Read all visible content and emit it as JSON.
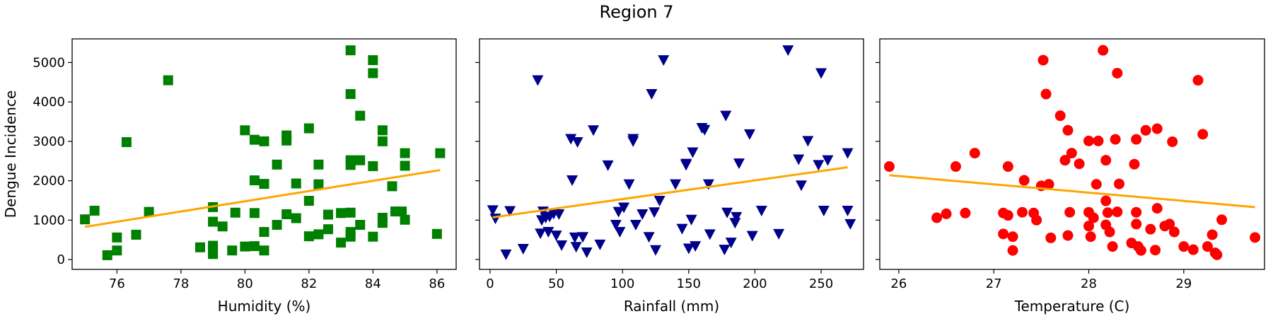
{
  "title": "Region 7",
  "chart_data": [
    {
      "type": "scatter",
      "xlabel": "Humidity (%)",
      "ylabel": "Dengue Incidence",
      "xlim": [
        74.6,
        86.6
      ],
      "ylim": [
        -250,
        5600
      ],
      "xticks": [
        76,
        78,
        80,
        82,
        84,
        86
      ],
      "yticks": [
        0,
        1000,
        2000,
        3000,
        4000,
        5000
      ],
      "marker": "square",
      "color": "#008000",
      "trend_color": "#FFA500",
      "trend": {
        "x": [
          75.0,
          86.1
        ],
        "y": [
          830,
          2270
        ]
      },
      "points": [
        [
          75.0,
          1020
        ],
        [
          75.3,
          1240
        ],
        [
          75.7,
          110
        ],
        [
          76.0,
          560
        ],
        [
          76.0,
          230
        ],
        [
          76.3,
          2980
        ],
        [
          76.6,
          630
        ],
        [
          77.0,
          1210
        ],
        [
          77.6,
          4550
        ],
        [
          78.6,
          310
        ],
        [
          79.0,
          1330
        ],
        [
          79.0,
          960
        ],
        [
          79.0,
          350
        ],
        [
          79.0,
          240
        ],
        [
          79.0,
          140
        ],
        [
          79.3,
          840
        ],
        [
          79.6,
          230
        ],
        [
          79.7,
          1190
        ],
        [
          80.0,
          3280
        ],
        [
          80.0,
          330
        ],
        [
          80.3,
          3040
        ],
        [
          80.3,
          2010
        ],
        [
          80.3,
          1180
        ],
        [
          80.3,
          340
        ],
        [
          80.6,
          3000
        ],
        [
          80.6,
          1920
        ],
        [
          80.6,
          700
        ],
        [
          80.6,
          230
        ],
        [
          81.0,
          2410
        ],
        [
          81.0,
          880
        ],
        [
          81.3,
          3150
        ],
        [
          81.3,
          3020
        ],
        [
          81.3,
          1150
        ],
        [
          81.6,
          1930
        ],
        [
          81.6,
          1050
        ],
        [
          82.0,
          3330
        ],
        [
          82.0,
          1490
        ],
        [
          82.0,
          590
        ],
        [
          82.3,
          2410
        ],
        [
          82.3,
          1910
        ],
        [
          82.3,
          640
        ],
        [
          82.6,
          1140
        ],
        [
          82.6,
          770
        ],
        [
          83.0,
          1180
        ],
        [
          83.0,
          430
        ],
        [
          83.3,
          5310
        ],
        [
          83.3,
          4200
        ],
        [
          83.3,
          2520
        ],
        [
          83.3,
          2400
        ],
        [
          83.3,
          1190
        ],
        [
          83.3,
          700
        ],
        [
          83.3,
          580
        ],
        [
          83.6,
          3650
        ],
        [
          83.6,
          2520
        ],
        [
          83.6,
          880
        ],
        [
          84.0,
          5060
        ],
        [
          84.0,
          4730
        ],
        [
          84.0,
          2370
        ],
        [
          84.0,
          580
        ],
        [
          84.3,
          3280
        ],
        [
          84.3,
          3000
        ],
        [
          84.3,
          1060
        ],
        [
          84.3,
          930
        ],
        [
          84.6,
          1860
        ],
        [
          84.7,
          1220
        ],
        [
          84.9,
          1220
        ],
        [
          85.0,
          2700
        ],
        [
          85.0,
          2380
        ],
        [
          85.0,
          1010
        ],
        [
          86.0,
          650
        ],
        [
          86.1,
          2700
        ]
      ]
    },
    {
      "type": "scatter",
      "xlabel": "Rainfall (mm)",
      "ylabel": "",
      "xlim": [
        -8,
        282
      ],
      "ylim": [
        -250,
        5600
      ],
      "xticks": [
        0,
        50,
        100,
        150,
        200,
        250
      ],
      "yticks": [
        0,
        1000,
        2000,
        3000,
        4000,
        5000
      ],
      "marker": "triangle-down",
      "color": "#00008B",
      "trend_color": "#FFA500",
      "trend": {
        "x": [
          2,
          270
        ],
        "y": [
          1070,
          2340
        ]
      },
      "points": [
        [
          2,
          1250
        ],
        [
          4,
          1040
        ],
        [
          12,
          130
        ],
        [
          15,
          1230
        ],
        [
          25,
          270
        ],
        [
          36,
          4550
        ],
        [
          38,
          660
        ],
        [
          39,
          1000
        ],
        [
          40,
          1220
        ],
        [
          42,
          1060
        ],
        [
          44,
          700
        ],
        [
          45,
          1090
        ],
        [
          48,
          1160
        ],
        [
          50,
          610
        ],
        [
          52,
          1150
        ],
        [
          54,
          360
        ],
        [
          61,
          3060
        ],
        [
          62,
          2010
        ],
        [
          64,
          560
        ],
        [
          65,
          320
        ],
        [
          66,
          2980
        ],
        [
          70,
          570
        ],
        [
          73,
          180
        ],
        [
          78,
          3280
        ],
        [
          83,
          380
        ],
        [
          89,
          2390
        ],
        [
          95,
          880
        ],
        [
          97,
          1210
        ],
        [
          98,
          700
        ],
        [
          101,
          1320
        ],
        [
          105,
          1910
        ],
        [
          108,
          3060
        ],
        [
          108,
          3000
        ],
        [
          110,
          880
        ],
        [
          115,
          1150
        ],
        [
          120,
          570
        ],
        [
          122,
          4200
        ],
        [
          124,
          1200
        ],
        [
          125,
          240
        ],
        [
          128,
          1490
        ],
        [
          131,
          5060
        ],
        [
          140,
          1910
        ],
        [
          145,
          780
        ],
        [
          148,
          2400
        ],
        [
          148,
          2430
        ],
        [
          150,
          280
        ],
        [
          152,
          1010
        ],
        [
          153,
          2720
        ],
        [
          155,
          340
        ],
        [
          160,
          3340
        ],
        [
          162,
          3290
        ],
        [
          165,
          1910
        ],
        [
          166,
          640
        ],
        [
          177,
          250
        ],
        [
          178,
          3650
        ],
        [
          179,
          1190
        ],
        [
          182,
          430
        ],
        [
          185,
          930
        ],
        [
          186,
          1080
        ],
        [
          188,
          2440
        ],
        [
          196,
          3180
        ],
        [
          198,
          600
        ],
        [
          205,
          1240
        ],
        [
          218,
          650
        ],
        [
          225,
          5310
        ],
        [
          233,
          2540
        ],
        [
          235,
          1880
        ],
        [
          240,
          3010
        ],
        [
          248,
          2400
        ],
        [
          250,
          4730
        ],
        [
          252,
          1240
        ],
        [
          255,
          2520
        ],
        [
          270,
          2700
        ],
        [
          270,
          1240
        ],
        [
          272,
          900
        ]
      ]
    },
    {
      "type": "scatter",
      "xlabel": "Temperature (C)",
      "ylabel": "",
      "xlim": [
        25.8,
        29.85
      ],
      "ylim": [
        -250,
        5600
      ],
      "xticks": [
        26,
        27,
        28,
        29
      ],
      "yticks": [
        0,
        1000,
        2000,
        3000,
        4000,
        5000
      ],
      "marker": "circle",
      "color": "#FF0000",
      "trend_color": "#FFA500",
      "trend": {
        "x": [
          25.9,
          29.75
        ],
        "y": [
          2140,
          1330
        ]
      },
      "points": [
        [
          25.9,
          2360
        ],
        [
          26.4,
          1060
        ],
        [
          26.5,
          1160
        ],
        [
          26.6,
          2360
        ],
        [
          26.7,
          1180
        ],
        [
          26.8,
          2700
        ],
        [
          27.1,
          650
        ],
        [
          27.1,
          1180
        ],
        [
          27.15,
          2360
        ],
        [
          27.15,
          1120
        ],
        [
          27.2,
          230
        ],
        [
          27.2,
          580
        ],
        [
          27.3,
          1200
        ],
        [
          27.32,
          2010
        ],
        [
          27.42,
          1180
        ],
        [
          27.45,
          1000
        ],
        [
          27.5,
          1870
        ],
        [
          27.52,
          5060
        ],
        [
          27.55,
          4200
        ],
        [
          27.58,
          1910
        ],
        [
          27.6,
          550
        ],
        [
          27.7,
          3650
        ],
        [
          27.75,
          2520
        ],
        [
          27.78,
          3280
        ],
        [
          27.78,
          610
        ],
        [
          27.8,
          1200
        ],
        [
          27.82,
          2700
        ],
        [
          27.9,
          2430
        ],
        [
          28.0,
          3010
        ],
        [
          28.0,
          850
        ],
        [
          28.0,
          1200
        ],
        [
          28.02,
          580
        ],
        [
          28.05,
          1060
        ],
        [
          28.08,
          1910
        ],
        [
          28.1,
          3010
        ],
        [
          28.15,
          5310
        ],
        [
          28.18,
          1490
        ],
        [
          28.18,
          2520
        ],
        [
          28.18,
          880
        ],
        [
          28.2,
          1190
        ],
        [
          28.22,
          700
        ],
        [
          28.25,
          330
        ],
        [
          28.28,
          3050
        ],
        [
          28.3,
          1210
        ],
        [
          28.3,
          4730
        ],
        [
          28.32,
          1920
        ],
        [
          28.45,
          420
        ],
        [
          28.48,
          2420
        ],
        [
          28.5,
          3050
        ],
        [
          28.5,
          1200
        ],
        [
          28.5,
          900
        ],
        [
          28.52,
          330
        ],
        [
          28.55,
          230
        ],
        [
          28.6,
          3280
        ],
        [
          28.65,
          770
        ],
        [
          28.7,
          240
        ],
        [
          28.72,
          3320
        ],
        [
          28.72,
          1300
        ],
        [
          28.8,
          850
        ],
        [
          28.85,
          900
        ],
        [
          28.88,
          2990
        ],
        [
          28.9,
          700
        ],
        [
          29.0,
          330
        ],
        [
          29.1,
          250
        ],
        [
          29.15,
          4550
        ],
        [
          29.2,
          3180
        ],
        [
          29.25,
          330
        ],
        [
          29.3,
          630
        ],
        [
          29.33,
          170
        ],
        [
          29.35,
          120
        ],
        [
          29.4,
          1010
        ],
        [
          29.75,
          560
        ]
      ]
    }
  ]
}
